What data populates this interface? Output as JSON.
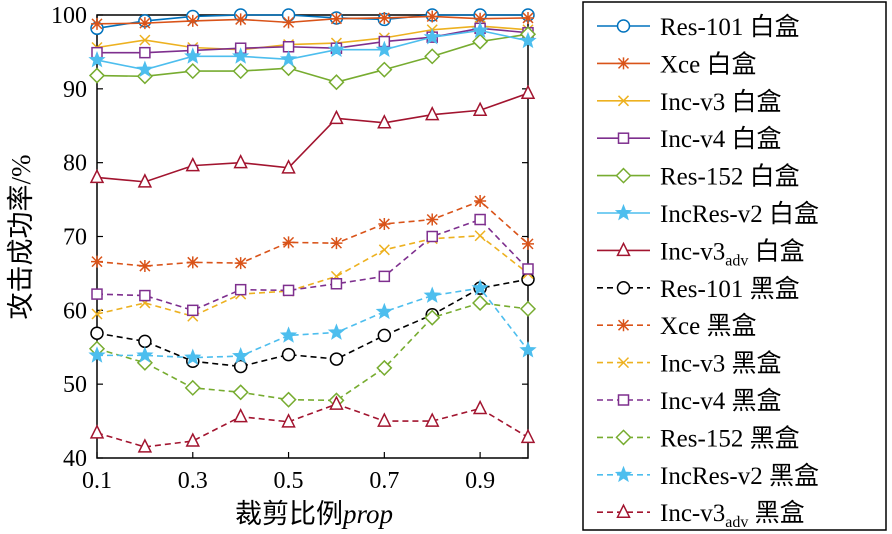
{
  "chart_data": {
    "type": "line",
    "x": [
      0.1,
      0.2,
      0.3,
      0.4,
      0.5,
      0.6,
      0.7,
      0.8,
      0.9,
      1.0
    ],
    "xticks": [
      "0.1",
      "0.3",
      "0.5",
      "0.7",
      "0.9"
    ],
    "yticks": [
      "40",
      "50",
      "60",
      "70",
      "80",
      "90",
      "100"
    ],
    "xlim": [
      0.1,
      1.0
    ],
    "ylim": [
      40,
      100
    ],
    "xlabel": "裁剪比例",
    "xlabel_italic": "prop",
    "ylabel": "攻击成功率/%",
    "grid": false,
    "legend_position": "right, outside plot",
    "series": [
      {
        "name": "Res-101 白盒",
        "color": "#0072BD",
        "marker": "circle",
        "dash": "solid",
        "values": [
          98.2,
          99.2,
          99.8,
          100,
          100,
          99.6,
          99.4,
          100,
          100,
          100
        ]
      },
      {
        "name": "Xce 白盒",
        "color": "#D95319",
        "marker": "asterisk",
        "dash": "solid",
        "values": [
          98.8,
          98.9,
          99.2,
          99.4,
          99.0,
          99.5,
          99.6,
          99.8,
          99.5,
          99.6
        ]
      },
      {
        "name": "Inc-v3 白盒",
        "color": "#EDB120",
        "marker": "x",
        "dash": "solid",
        "values": [
          95.6,
          96.6,
          95.6,
          95.3,
          96.0,
          96.2,
          96.9,
          98.0,
          98.5,
          98.0
        ]
      },
      {
        "name": "Inc-v4 白盒",
        "color": "#7E2F8E",
        "marker": "square",
        "dash": "solid",
        "values": [
          94.9,
          94.9,
          95.2,
          95.5,
          95.7,
          95.5,
          96.4,
          97.0,
          98.2,
          97.6
        ]
      },
      {
        "name": "Res-152 白盒",
        "color": "#77AC30",
        "marker": "diamond",
        "dash": "solid",
        "values": [
          91.8,
          91.7,
          92.4,
          92.4,
          92.8,
          90.9,
          92.6,
          94.4,
          96.4,
          97.4
        ]
      },
      {
        "name": "IncRes-v2 白盒",
        "color": "#4DBEEE",
        "marker": "star",
        "dash": "solid",
        "values": [
          93.9,
          92.6,
          94.4,
          94.4,
          94.0,
          95.3,
          95.3,
          97.0,
          97.9,
          96.5
        ]
      },
      {
        "name": "Inc-v3",
        "name_subscript": "adv",
        "name_suffix": " 白盒",
        "color": "#A2142F",
        "marker": "triangle",
        "dash": "solid",
        "values": [
          78.0,
          77.4,
          79.6,
          80.0,
          79.3,
          86.0,
          85.4,
          86.5,
          87.1,
          89.4
        ]
      },
      {
        "name": "Res-101 黑盒",
        "color": "#000000",
        "marker": "circle",
        "dash": "dashed",
        "values": [
          56.9,
          55.8,
          53.1,
          52.4,
          54.0,
          53.4,
          56.6,
          59.4,
          63.0,
          64.2
        ]
      },
      {
        "name": "Xce 黑盒",
        "color": "#D95319",
        "marker": "asterisk",
        "dash": "dashed",
        "values": [
          66.6,
          66.0,
          66.5,
          66.4,
          69.2,
          69.1,
          71.7,
          72.3,
          74.8,
          69.0
        ]
      },
      {
        "name": "Inc-v3 黑盒",
        "color": "#EDB120",
        "marker": "x",
        "dash": "dashed",
        "values": [
          59.5,
          61.0,
          59.2,
          62.2,
          62.6,
          64.6,
          68.2,
          69.7,
          70.1,
          65.0
        ]
      },
      {
        "name": "Inc-v4 黑盒",
        "color": "#7E2F8E",
        "marker": "square",
        "dash": "dashed",
        "values": [
          62.2,
          62.0,
          60.0,
          62.8,
          62.7,
          63.6,
          64.6,
          70.0,
          72.3,
          65.6
        ]
      },
      {
        "name": "Res-152 黑盒",
        "color": "#77AC30",
        "marker": "diamond",
        "dash": "dashed",
        "values": [
          54.8,
          52.9,
          49.5,
          48.9,
          47.9,
          47.8,
          52.2,
          59.0,
          61.0,
          60.2
        ]
      },
      {
        "name": "IncRes-v2 黑盒",
        "color": "#4DBEEE",
        "marker": "star",
        "dash": "dashed",
        "values": [
          53.9,
          53.9,
          53.6,
          53.8,
          56.6,
          57.0,
          59.8,
          62.0,
          63.0,
          54.6
        ]
      },
      {
        "name": "Inc-v3",
        "name_subscript": "adv",
        "name_suffix": " 黑盒",
        "color": "#A2142F",
        "marker": "triangle",
        "dash": "dashed",
        "values": [
          43.4,
          41.5,
          42.3,
          45.6,
          44.9,
          47.3,
          45.0,
          45.0,
          46.7,
          42.8
        ]
      }
    ]
  }
}
